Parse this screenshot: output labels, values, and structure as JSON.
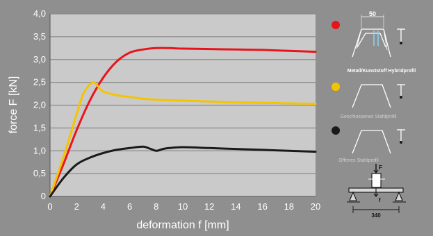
{
  "chart_data": {
    "type": "line",
    "xlabel": "deformation  f  [mm]",
    "ylabel": "force  F  [kN]",
    "xlim": [
      0,
      20
    ],
    "ylim": [
      0,
      4.0
    ],
    "x_ticks": [
      "0",
      "2",
      "4",
      "6",
      "8",
      "10",
      "12",
      "14",
      "16",
      "18",
      "20"
    ],
    "y_ticks": [
      "0",
      "0,5",
      "1,0",
      "1,5",
      "2,0",
      "2,5",
      "3,0",
      "3,5",
      "4,0"
    ],
    "grid": "horizontal",
    "series": [
      {
        "name": "Metall/Kunststoff Hybridprofil",
        "color": "#e8141c",
        "x": [
          0,
          1,
          2,
          3,
          4,
          5,
          6,
          7,
          8,
          9,
          10,
          12,
          14,
          16,
          18,
          20
        ],
        "y": [
          0,
          0.7,
          1.45,
          2.1,
          2.6,
          2.95,
          3.15,
          3.22,
          3.25,
          3.25,
          3.24,
          3.23,
          3.22,
          3.21,
          3.19,
          3.17
        ]
      },
      {
        "name": "Geschlossenes Stahlprofil",
        "color": "#f5c400",
        "x": [
          0,
          1,
          2,
          2.5,
          3,
          3.3,
          3.6,
          4,
          5,
          6,
          7,
          8,
          10,
          12,
          14,
          16,
          18,
          20
        ],
        "y": [
          0,
          0.85,
          1.8,
          2.25,
          2.45,
          2.5,
          2.42,
          2.3,
          2.22,
          2.18,
          2.14,
          2.12,
          2.1,
          2.08,
          2.06,
          2.05,
          2.04,
          2.03
        ]
      },
      {
        "name": "Offenes Stahlprofil",
        "color": "#1a1a1a",
        "x": [
          0,
          1,
          2,
          3,
          4,
          5,
          6,
          7,
          7.5,
          8,
          8.5,
          9,
          10,
          12,
          14,
          16,
          18,
          20
        ],
        "y": [
          0,
          0.4,
          0.7,
          0.85,
          0.95,
          1.02,
          1.06,
          1.09,
          1.05,
          1.0,
          1.04,
          1.06,
          1.08,
          1.06,
          1.04,
          1.02,
          1.0,
          0.98
        ]
      }
    ]
  },
  "legend": {
    "items": [
      {
        "color": "#e8141c",
        "caption": "Metall/Kunststoff Hybridprofil",
        "caption_color": "#ffffff",
        "dimension": "50"
      },
      {
        "color": "#f5c400",
        "caption": "Geschlossenes Stahlprofil",
        "caption_color": "#d0d0d0"
      },
      {
        "color": "#1a1a1a",
        "caption": "Offenes Stahlprofil",
        "caption_color": "#d0d0d0"
      }
    ],
    "test_rig": {
      "force_label": "F",
      "deflection_label": "f",
      "span": "340"
    }
  }
}
